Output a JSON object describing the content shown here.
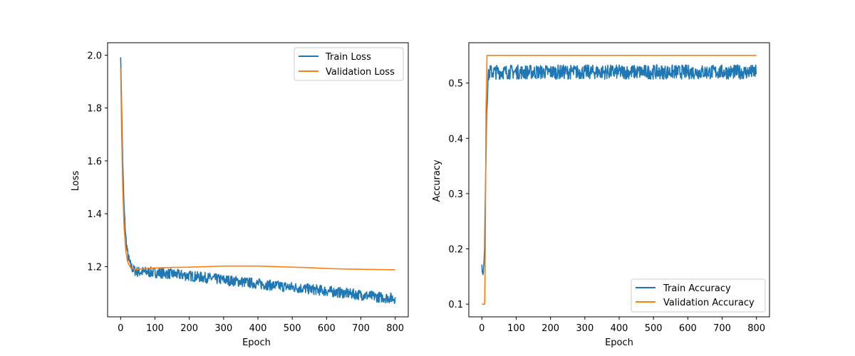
{
  "colors": {
    "train": "#1f77b4",
    "validation": "#ff7f0e",
    "axis": "#000000",
    "legend_border": "#cccccc"
  },
  "chart_data": [
    {
      "type": "line",
      "title": "",
      "xlabel": "Epoch",
      "ylabel": "Loss",
      "xlim": [
        -38,
        838
      ],
      "ylim": [
        1.01,
        2.047
      ],
      "xticks": [
        0,
        100,
        200,
        300,
        400,
        500,
        600,
        700,
        800
      ],
      "yticks": [
        1.2,
        1.4,
        1.6,
        1.8,
        2.0
      ],
      "ytick_labels": [
        "1.2",
        "1.4",
        "1.6",
        "1.8",
        "2.0"
      ],
      "grid": false,
      "legend_position": "upper right",
      "series": [
        {
          "name": "Train Loss",
          "color_key": "train",
          "noisy": true,
          "noise_amp": 0.02,
          "x": [
            0,
            3,
            6,
            10,
            15,
            20,
            25,
            30,
            40,
            50,
            75,
            100,
            150,
            200,
            250,
            300,
            350,
            400,
            450,
            500,
            550,
            600,
            650,
            700,
            750,
            800
          ],
          "y": [
            2.0,
            1.8,
            1.6,
            1.42,
            1.31,
            1.25,
            1.22,
            1.2,
            1.185,
            1.18,
            1.18,
            1.178,
            1.172,
            1.165,
            1.158,
            1.15,
            1.143,
            1.135,
            1.128,
            1.122,
            1.115,
            1.108,
            1.1,
            1.093,
            1.085,
            1.08
          ]
        },
        {
          "name": "Validation Loss",
          "color_key": "validation",
          "noisy": false,
          "x": [
            0,
            3,
            6,
            10,
            15,
            20,
            25,
            30,
            40,
            50,
            75,
            100,
            150,
            200,
            250,
            300,
            350,
            400,
            450,
            500,
            550,
            600,
            650,
            700,
            750,
            800
          ],
          "y": [
            1.95,
            1.7,
            1.5,
            1.35,
            1.26,
            1.22,
            1.205,
            1.195,
            1.19,
            1.19,
            1.193,
            1.195,
            1.197,
            1.198,
            1.2,
            1.202,
            1.202,
            1.202,
            1.2,
            1.198,
            1.196,
            1.193,
            1.191,
            1.19,
            1.189,
            1.188
          ]
        }
      ]
    },
    {
      "type": "line",
      "title": "",
      "xlabel": "Epoch",
      "ylabel": "Accuracy",
      "xlim": [
        -38,
        838
      ],
      "ylim": [
        0.077,
        0.573
      ],
      "xticks": [
        0,
        100,
        200,
        300,
        400,
        500,
        600,
        700,
        800
      ],
      "yticks": [
        0.1,
        0.2,
        0.3,
        0.4,
        0.5
      ],
      "ytick_labels": [
        "0.1",
        "0.2",
        "0.3",
        "0.4",
        "0.5"
      ],
      "grid": false,
      "legend_position": "lower right",
      "series": [
        {
          "name": "Train Accuracy",
          "color_key": "train",
          "noisy": true,
          "noise_amp": 0.013,
          "x": [
            0,
            2,
            4,
            6,
            8,
            10,
            14,
            18,
            22,
            30,
            100,
            200,
            300,
            400,
            500,
            600,
            700,
            800
          ],
          "y": [
            0.17,
            0.155,
            0.16,
            0.17,
            0.2,
            0.3,
            0.45,
            0.51,
            0.52,
            0.52,
            0.52,
            0.52,
            0.52,
            0.52,
            0.52,
            0.52,
            0.52,
            0.52
          ]
        },
        {
          "name": "Validation Accuracy",
          "color_key": "validation",
          "noisy": false,
          "x": [
            0,
            5,
            8,
            10,
            12,
            15,
            800
          ],
          "y": [
            0.1,
            0.1,
            0.1,
            0.2,
            0.45,
            0.55,
            0.55
          ]
        }
      ]
    }
  ]
}
